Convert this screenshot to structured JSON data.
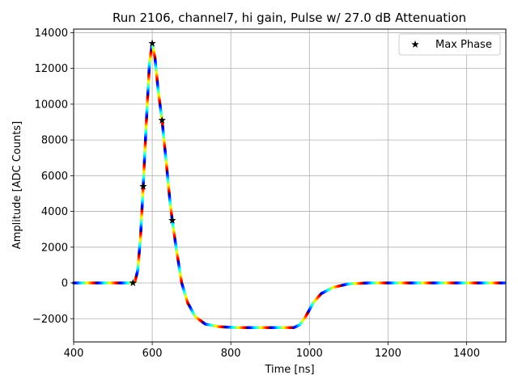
{
  "chart_data": {
    "type": "scatter",
    "title": "Run 2106, channel7, hi gain, Pulse w/ 27.0 dB Attenuation",
    "xlabel": "Time [ns]",
    "ylabel": "Amplitude [ADC Counts]",
    "xlim": [
      400,
      1500
    ],
    "ylim": [
      -3300,
      14200
    ],
    "xticks": [
      400,
      600,
      800,
      1000,
      1200,
      1400
    ],
    "yticks": [
      -2000,
      0,
      2000,
      4000,
      6000,
      8000,
      10000,
      12000,
      14000
    ],
    "ytick_labels": [
      "−2000",
      "0",
      "2000",
      "4000",
      "6000",
      "8000",
      "10000",
      "12000",
      "14000"
    ],
    "grid": true,
    "legend": {
      "placement": "top-right",
      "entries": [
        "Max Phase"
      ]
    },
    "colormap": "jet",
    "pulse_curve": [
      {
        "x": 400,
        "y": 0
      },
      {
        "x": 550,
        "y": 0
      },
      {
        "x": 556,
        "y": 50
      },
      {
        "x": 563,
        "y": 700
      },
      {
        "x": 570,
        "y": 2500
      },
      {
        "x": 577,
        "y": 5400
      },
      {
        "x": 585,
        "y": 9000
      },
      {
        "x": 593,
        "y": 12300
      },
      {
        "x": 600,
        "y": 13400
      },
      {
        "x": 607,
        "y": 12600
      },
      {
        "x": 615,
        "y": 10800
      },
      {
        "x": 625,
        "y": 9100
      },
      {
        "x": 635,
        "y": 6900
      },
      {
        "x": 645,
        "y": 4600
      },
      {
        "x": 651,
        "y": 3500
      },
      {
        "x": 662,
        "y": 1800
      },
      {
        "x": 675,
        "y": 0
      },
      {
        "x": 690,
        "y": -1100
      },
      {
        "x": 710,
        "y": -1900
      },
      {
        "x": 735,
        "y": -2300
      },
      {
        "x": 770,
        "y": -2450
      },
      {
        "x": 820,
        "y": -2500
      },
      {
        "x": 960,
        "y": -2500
      },
      {
        "x": 975,
        "y": -2350
      },
      {
        "x": 990,
        "y": -1900
      },
      {
        "x": 1010,
        "y": -1100
      },
      {
        "x": 1030,
        "y": -600
      },
      {
        "x": 1060,
        "y": -250
      },
      {
        "x": 1100,
        "y": -50
      },
      {
        "x": 1150,
        "y": 0
      },
      {
        "x": 1500,
        "y": 0
      }
    ],
    "series": [
      {
        "name": "Max Phase",
        "marker": "star",
        "color": "#000000",
        "points": [
          {
            "x": 551,
            "y": 0
          },
          {
            "x": 577,
            "y": 5400
          },
          {
            "x": 600,
            "y": 13400
          },
          {
            "x": 625,
            "y": 9100
          },
          {
            "x": 651,
            "y": 3500
          }
        ]
      }
    ]
  }
}
